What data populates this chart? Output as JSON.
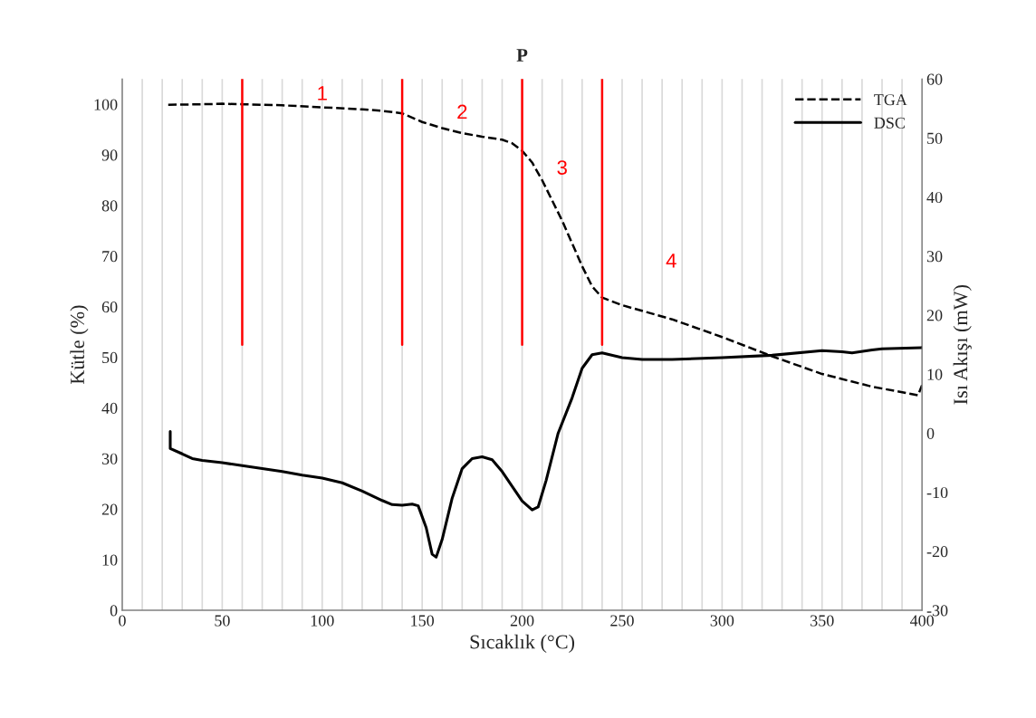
{
  "chart_data": {
    "type": "line",
    "title": "P",
    "xlabel": "Sıcaklık (°C)",
    "ylabel": "Kütle (%)",
    "y2label": "Isı Akışı (mW)",
    "xlim": [
      0,
      400
    ],
    "xticks": [
      0,
      {
        "value": 10,
        "label": null
      },
      {
        "value": 20,
        "label": null
      },
      {
        "value": 30,
        "label": null
      },
      {
        "value": 40,
        "label": null
      },
      50,
      {
        "value": 60,
        "label": null
      },
      {
        "value": 70,
        "label": null
      },
      {
        "value": 80,
        "label": null
      },
      {
        "value": 90,
        "label": null
      },
      100,
      {
        "value": 110,
        "label": null
      },
      {
        "value": 120,
        "label": null
      },
      {
        "value": 130,
        "label": null
      },
      {
        "value": 140,
        "label": null
      },
      150,
      {
        "value": 160,
        "label": null
      },
      {
        "value": 170,
        "label": null
      },
      {
        "value": 180,
        "label": null
      },
      {
        "value": 190,
        "label": null
      },
      200,
      {
        "value": 210,
        "label": null
      },
      {
        "value": 220,
        "label": null
      },
      {
        "value": 230,
        "label": null
      },
      {
        "value": 240,
        "label": null
      },
      250,
      {
        "value": 260,
        "label": null
      },
      {
        "value": 270,
        "label": null
      },
      {
        "value": 280,
        "label": null
      },
      {
        "value": 290,
        "label": null
      },
      300,
      {
        "value": 310,
        "label": null
      },
      {
        "value": 320,
        "label": null
      },
      {
        "value": 330,
        "label": null
      },
      {
        "value": 340,
        "label": null
      },
      350,
      {
        "value": 360,
        "label": null
      },
      {
        "value": 370,
        "label": null
      },
      {
        "value": 380,
        "label": null
      },
      {
        "value": 390,
        "label": null
      },
      400
    ],
    "ylim": [
      0,
      105
    ],
    "yticks": [
      0,
      10,
      20,
      30,
      40,
      50,
      60,
      70,
      80,
      90,
      100
    ],
    "y2lim": [
      -30,
      60
    ],
    "y2ticks": [
      -30,
      -20,
      -10,
      0,
      10,
      20,
      30,
      40,
      50,
      60
    ],
    "grid": "x",
    "legend": "top right",
    "series": [
      {
        "name": "TGA",
        "color": "#000000",
        "line_style": "dashed",
        "x": [
          23,
          40,
          50,
          60,
          80,
          100,
          120,
          130,
          140,
          150,
          160,
          170,
          180,
          190,
          195,
          200,
          205,
          210,
          215,
          220,
          225,
          230,
          235,
          240,
          250,
          275,
          300,
          325,
          350,
          375,
          398,
          400
        ],
        "values": [
          99.9,
          100,
          100.1,
          100,
          99.8,
          99.4,
          99,
          98.7,
          98.2,
          96.5,
          95.3,
          94.3,
          93.6,
          93,
          92.3,
          90.8,
          88.5,
          85,
          81,
          77,
          72.5,
          68,
          64,
          61.8,
          60.3,
          57.5,
          54,
          50.2,
          46.7,
          44.2,
          42.5,
          44.5
        ]
      },
      {
        "name": "DSC",
        "color": "#000000",
        "line_style": "solid",
        "axis": "y2",
        "x": [
          24,
          24,
          30,
          35,
          40,
          50,
          60,
          70,
          80,
          90,
          100,
          110,
          120,
          130,
          135,
          140,
          145,
          148,
          152,
          155,
          157,
          160,
          165,
          170,
          175,
          180,
          185,
          190,
          195,
          200,
          205,
          208,
          212,
          218,
          225,
          230,
          235,
          240,
          250,
          260,
          275,
          300,
          325,
          350,
          360,
          365,
          375,
          380,
          400
        ],
        "values": [
          0.3,
          -2.6,
          -3.5,
          -4.3,
          -4.6,
          -5.0,
          -5.5,
          -6.0,
          -6.5,
          -7.1,
          -7.6,
          -8.4,
          -9.8,
          -11.4,
          -12.1,
          -12.2,
          -12.0,
          -12.3,
          -16,
          -20.5,
          -21,
          -18,
          -11,
          -6,
          -4.3,
          -4,
          -4.5,
          -6.5,
          -9,
          -11.5,
          -13,
          -12.5,
          -8,
          0,
          6,
          11,
          13.3,
          13.6,
          12.8,
          12.5,
          12.5,
          12.8,
          13.2,
          14,
          13.8,
          13.6,
          14.1,
          14.3,
          14.5
        ]
      }
    ],
    "ref_lines": [
      {
        "axis": "x",
        "value": 60,
        "color": "#ff0000"
      },
      {
        "axis": "x",
        "value": 140,
        "color": "#ff0000"
      },
      {
        "axis": "x",
        "value": 200,
        "color": "#ff0000"
      },
      {
        "axis": "x",
        "value": 240,
        "color": "#ff0000"
      }
    ],
    "annotations": [
      "1",
      "2",
      "3",
      "4"
    ]
  }
}
